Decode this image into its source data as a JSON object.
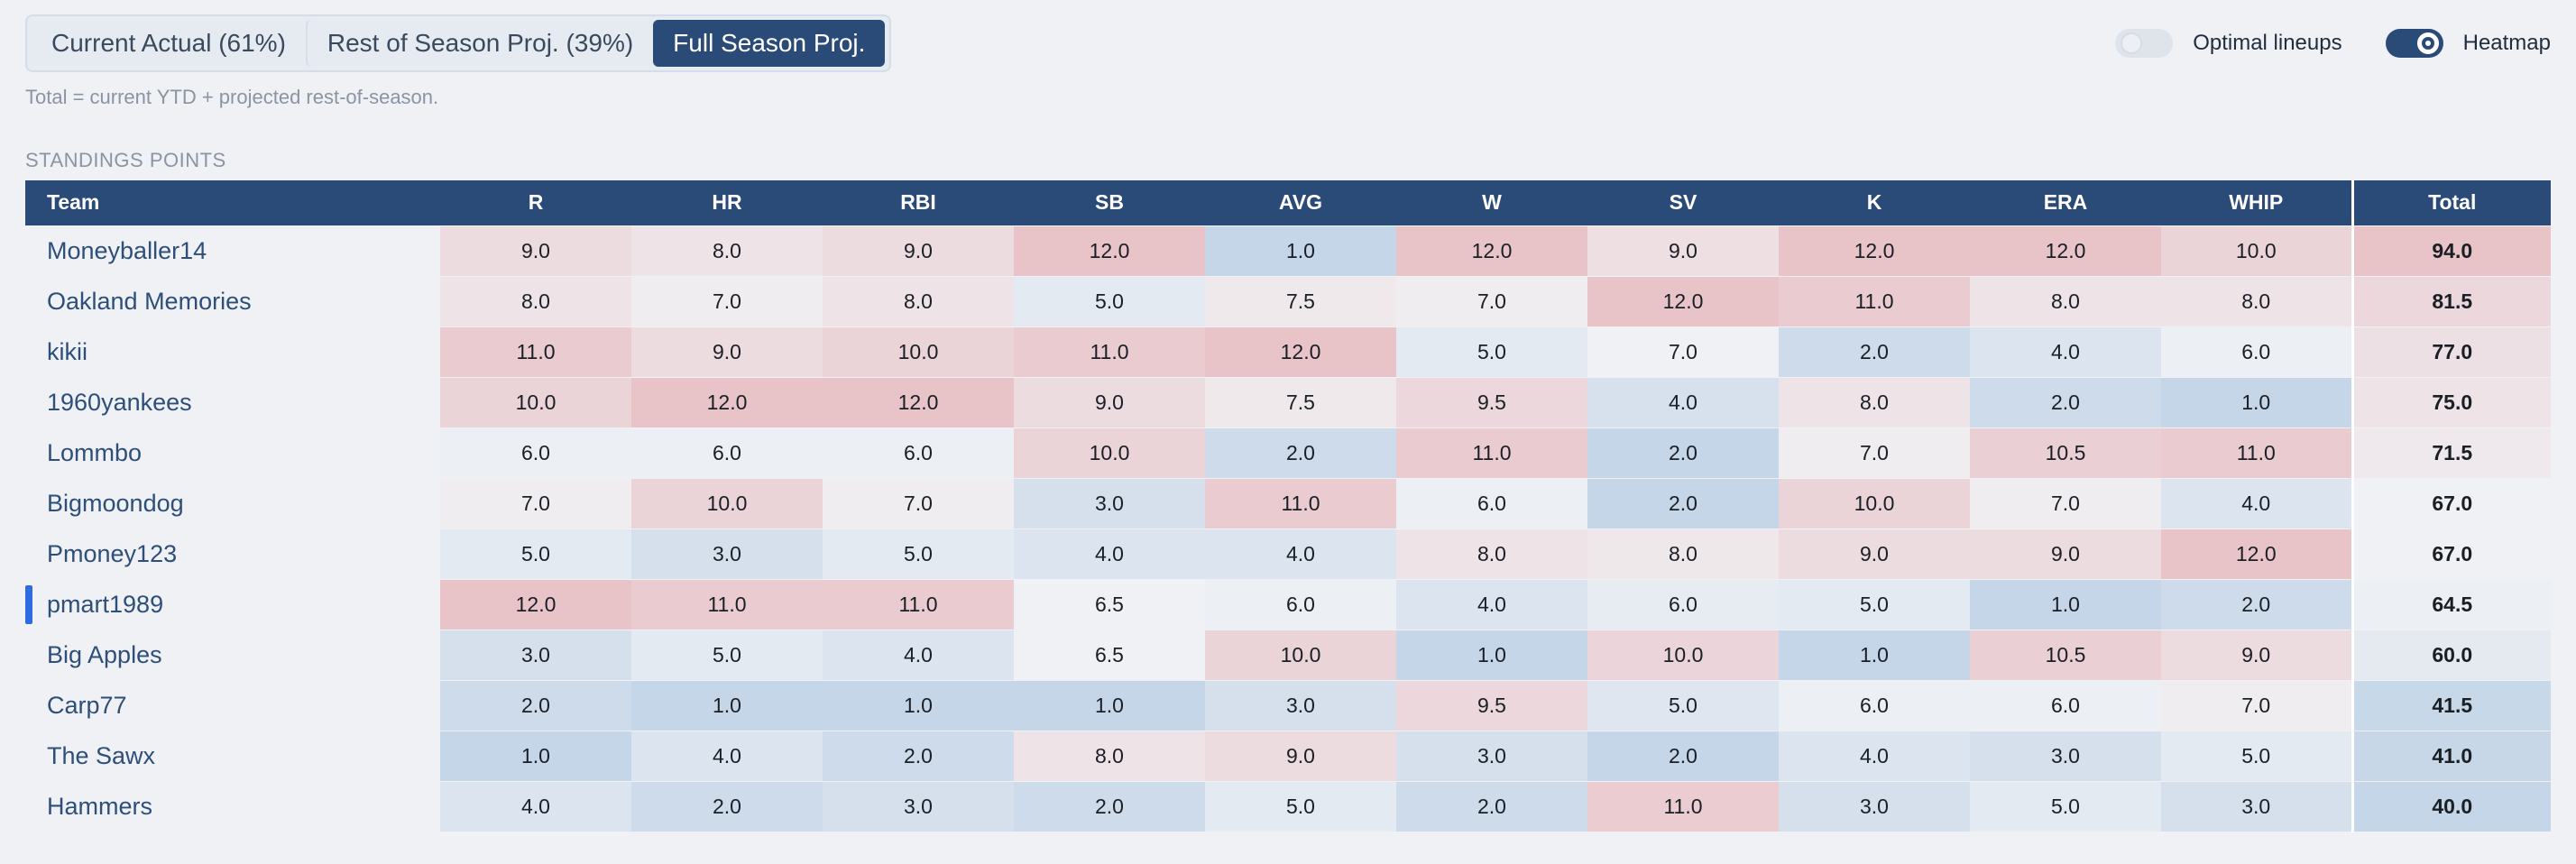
{
  "tabs": [
    {
      "label": "Current Actual (61%)",
      "active": false
    },
    {
      "label": "Rest of Season Proj. (39%)",
      "active": false
    },
    {
      "label": "Full Season Proj.",
      "active": true
    }
  ],
  "toggles": {
    "optimal": {
      "label": "Optimal lineups",
      "on": false
    },
    "heatmap": {
      "label": "Heatmap",
      "on": true
    }
  },
  "note": "Total = current YTD + projected rest-of-season.",
  "section_title": "STANDINGS POINTS",
  "table": {
    "headers": [
      "Team",
      "R",
      "HR",
      "RBI",
      "SB",
      "AVG",
      "W",
      "SV",
      "K",
      "ERA",
      "WHIP",
      "Total"
    ],
    "rows": [
      {
        "team": "Moneyballer14",
        "highlight": false,
        "values": [
          "9.0",
          "8.0",
          "9.0",
          "12.0",
          "1.0",
          "12.0",
          "9.0",
          "12.0",
          "12.0",
          "10.0"
        ],
        "total": "94.0"
      },
      {
        "team": "Oakland Memories",
        "highlight": false,
        "values": [
          "8.0",
          "7.0",
          "8.0",
          "5.0",
          "7.5",
          "7.0",
          "12.0",
          "11.0",
          "8.0",
          "8.0"
        ],
        "total": "81.5"
      },
      {
        "team": "kikii",
        "highlight": false,
        "values": [
          "11.0",
          "9.0",
          "10.0",
          "11.0",
          "12.0",
          "5.0",
          "7.0",
          "2.0",
          "4.0",
          "6.0"
        ],
        "total": "77.0"
      },
      {
        "team": "1960yankees",
        "highlight": false,
        "values": [
          "10.0",
          "12.0",
          "12.0",
          "9.0",
          "7.5",
          "9.5",
          "4.0",
          "8.0",
          "2.0",
          "1.0"
        ],
        "total": "75.0"
      },
      {
        "team": "Lommbo",
        "highlight": false,
        "values": [
          "6.0",
          "6.0",
          "6.0",
          "10.0",
          "2.0",
          "11.0",
          "2.0",
          "7.0",
          "10.5",
          "11.0"
        ],
        "total": "71.5"
      },
      {
        "team": "Bigmoondog",
        "highlight": false,
        "values": [
          "7.0",
          "10.0",
          "7.0",
          "3.0",
          "11.0",
          "6.0",
          "2.0",
          "10.0",
          "7.0",
          "4.0"
        ],
        "total": "67.0"
      },
      {
        "team": "Pmoney123",
        "highlight": false,
        "values": [
          "5.0",
          "3.0",
          "5.0",
          "4.0",
          "4.0",
          "8.0",
          "8.0",
          "9.0",
          "9.0",
          "12.0"
        ],
        "total": "67.0"
      },
      {
        "team": "pmart1989",
        "highlight": true,
        "values": [
          "12.0",
          "11.0",
          "11.0",
          "6.5",
          "6.0",
          "4.0",
          "6.0",
          "5.0",
          "1.0",
          "2.0"
        ],
        "total": "64.5"
      },
      {
        "team": "Big Apples",
        "highlight": false,
        "values": [
          "3.0",
          "5.0",
          "4.0",
          "6.5",
          "10.0",
          "1.0",
          "10.0",
          "1.0",
          "10.5",
          "9.0"
        ],
        "total": "60.0"
      },
      {
        "team": "Carp77",
        "highlight": false,
        "values": [
          "2.0",
          "1.0",
          "1.0",
          "1.0",
          "3.0",
          "9.5",
          "5.0",
          "6.0",
          "6.0",
          "7.0"
        ],
        "total": "41.5"
      },
      {
        "team": "The Sawx",
        "highlight": false,
        "values": [
          "1.0",
          "4.0",
          "2.0",
          "8.0",
          "9.0",
          "3.0",
          "2.0",
          "4.0",
          "3.0",
          "5.0"
        ],
        "total": "41.0"
      },
      {
        "team": "Hammers",
        "highlight": false,
        "values": [
          "4.0",
          "2.0",
          "3.0",
          "2.0",
          "5.0",
          "2.0",
          "11.0",
          "3.0",
          "5.0",
          "3.0"
        ],
        "total": "40.0"
      }
    ]
  },
  "colors": {
    "header_bg": "#2a4a78",
    "heat_high": "#e8c3c8",
    "heat_mid": "#f0f1f4",
    "heat_low": "#c5d6e8",
    "highlight_bar": "#2d6be0"
  }
}
